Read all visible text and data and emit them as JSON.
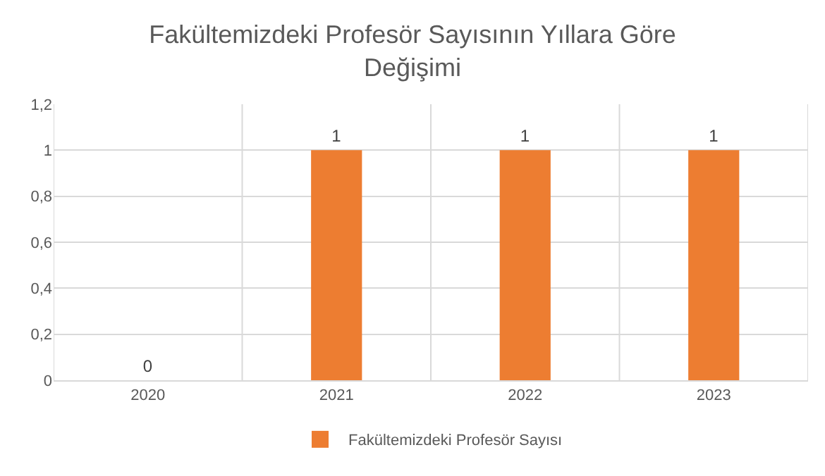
{
  "chart_data": {
    "type": "bar",
    "title": "Fakültemizdeki Profesör Sayısının Yıllara Göre Değişimi",
    "categories": [
      "2020",
      "2021",
      "2022",
      "2023"
    ],
    "series": [
      {
        "name": "Fakültemizdeki Profesör Sayısı",
        "color": "#ed7d31",
        "values": [
          0,
          1,
          1,
          1
        ]
      }
    ],
    "ylim": [
      0,
      1.2
    ],
    "yticks": [
      0,
      {
        "value": 0.2,
        "label": "0,2"
      },
      {
        "value": 0.4,
        "label": "0,4"
      },
      {
        "value": 0.6,
        "label": "0,6"
      },
      {
        "value": 0.8,
        "label": "0,8"
      },
      1,
      {
        "value": 1.2,
        "label": "1,2"
      }
    ],
    "grid": true,
    "legend": "bottom",
    "data_labels": true
  }
}
